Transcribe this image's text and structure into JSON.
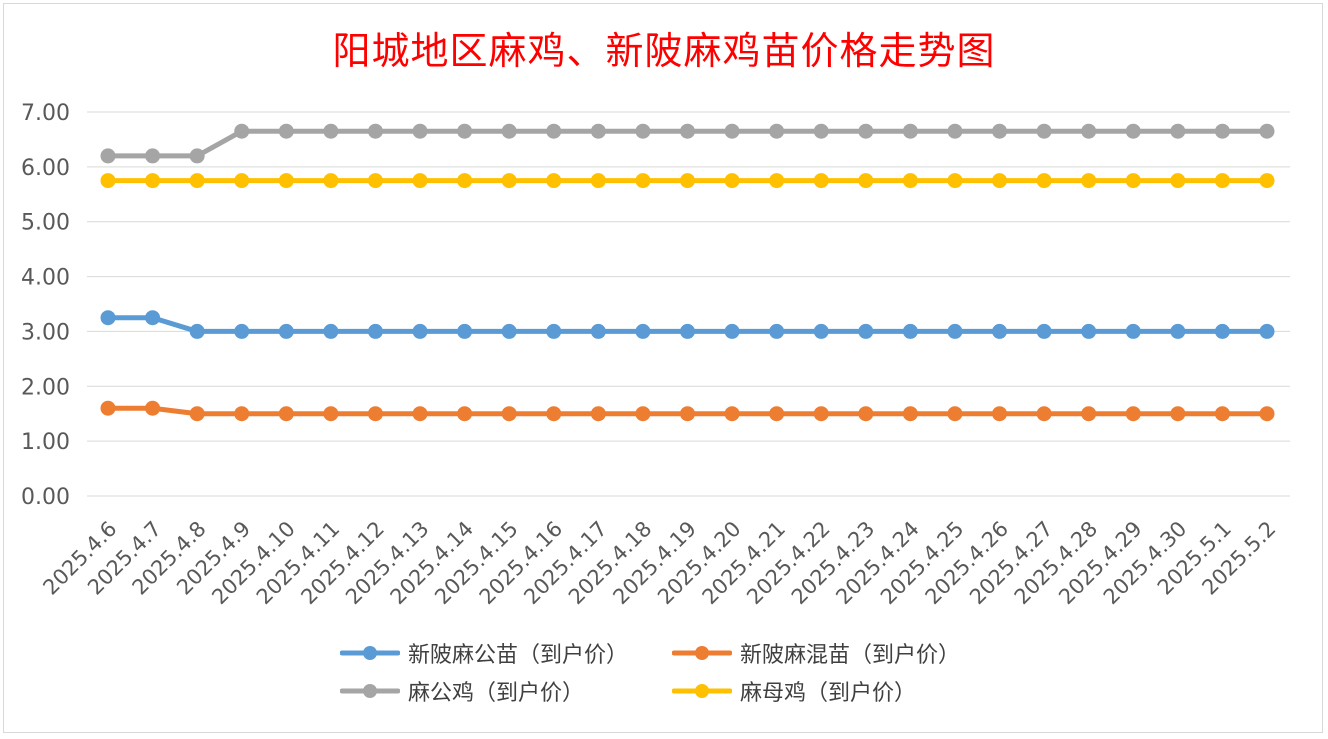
{
  "chart_data": {
    "type": "line",
    "title": "阳城地区麻鸡、新陂麻鸡苗价格走势图",
    "categories": [
      "2025.4.6",
      "2025.4.7",
      "2025.4.8",
      "2025.4.9",
      "2025.4.10",
      "2025.4.11",
      "2025.4.12",
      "2025.4.13",
      "2025.4.14",
      "2025.4.15",
      "2025.4.16",
      "2025.4.17",
      "2025.4.18",
      "2025.4.19",
      "2025.4.20",
      "2025.4.21",
      "2025.4.22",
      "2025.4.23",
      "2025.4.24",
      "2025.4.25",
      "2025.4.26",
      "2025.4.27",
      "2025.4.28",
      "2025.4.29",
      "2025.4.30",
      "2025.5.1",
      "2025.5.2"
    ],
    "y_ticks": [
      "0.00",
      "1.00",
      "2.00",
      "3.00",
      "4.00",
      "5.00",
      "6.00",
      "7.00"
    ],
    "ylim": [
      0,
      7
    ],
    "grid": true,
    "legend_position": "bottom",
    "series": [
      {
        "name": "新陂麻公苗（到户价）",
        "color": "#5b9bd5",
        "values": [
          3.25,
          3.25,
          3.0,
          3.0,
          3.0,
          3.0,
          3.0,
          3.0,
          3.0,
          3.0,
          3.0,
          3.0,
          3.0,
          3.0,
          3.0,
          3.0,
          3.0,
          3.0,
          3.0,
          3.0,
          3.0,
          3.0,
          3.0,
          3.0,
          3.0,
          3.0,
          3.0
        ]
      },
      {
        "name": "新陂麻混苗（到户价）",
        "color": "#ed7d31",
        "values": [
          1.6,
          1.6,
          1.5,
          1.5,
          1.5,
          1.5,
          1.5,
          1.5,
          1.5,
          1.5,
          1.5,
          1.5,
          1.5,
          1.5,
          1.5,
          1.5,
          1.5,
          1.5,
          1.5,
          1.5,
          1.5,
          1.5,
          1.5,
          1.5,
          1.5,
          1.5,
          1.5
        ]
      },
      {
        "name": "麻公鸡（到户价）",
        "color": "#a5a5a5",
        "values": [
          6.2,
          6.2,
          6.2,
          6.65,
          6.65,
          6.65,
          6.65,
          6.65,
          6.65,
          6.65,
          6.65,
          6.65,
          6.65,
          6.65,
          6.65,
          6.65,
          6.65,
          6.65,
          6.65,
          6.65,
          6.65,
          6.65,
          6.65,
          6.65,
          6.65,
          6.65,
          6.65
        ]
      },
      {
        "name": "麻母鸡（到户价）",
        "color": "#ffc000",
        "values": [
          5.75,
          5.75,
          5.75,
          5.75,
          5.75,
          5.75,
          5.75,
          5.75,
          5.75,
          5.75,
          5.75,
          5.75,
          5.75,
          5.75,
          5.75,
          5.75,
          5.75,
          5.75,
          5.75,
          5.75,
          5.75,
          5.75,
          5.75,
          5.75,
          5.75,
          5.75,
          5.75
        ]
      }
    ]
  }
}
